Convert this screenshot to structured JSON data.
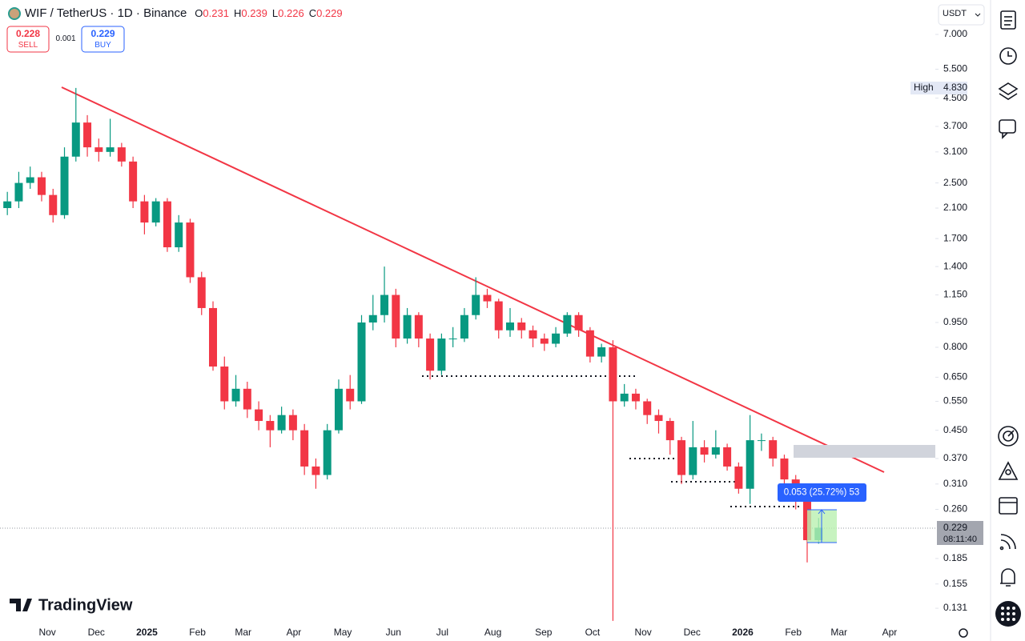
{
  "header": {
    "symbol": "WIF / TetherUS · 1D · Binance",
    "ohlc": [
      {
        "label": "O",
        "value": "0.231"
      },
      {
        "label": "H",
        "value": "0.239"
      },
      {
        "label": "L",
        "value": "0.226"
      },
      {
        "label": "C",
        "value": "0.229"
      }
    ],
    "sell": {
      "price": "0.228",
      "label": "SELL"
    },
    "spread": "0.001",
    "buy": {
      "price": "0.229",
      "label": "BUY"
    },
    "currency": "USDT",
    "brand": "TradingView"
  },
  "chart_data": {
    "type": "candlestick",
    "log": true,
    "grid": false,
    "up_color": "#089981",
    "down_color": "#f23645",
    "trendline_color": "#f23645",
    "xlim": [
      -29,
      544
    ],
    "ylim": [
      0.1186,
      8.887
    ],
    "xticks": [
      {
        "value": 0,
        "label": "Nov"
      },
      {
        "value": 30,
        "label": "Dec"
      },
      {
        "value": 61,
        "label": "2025"
      },
      {
        "value": 92,
        "label": "Feb"
      },
      {
        "value": 120,
        "label": "Mar"
      },
      {
        "value": 151,
        "label": "Apr"
      },
      {
        "value": 181,
        "label": "May"
      },
      {
        "value": 212,
        "label": "Jun"
      },
      {
        "value": 242,
        "label": "Jul"
      },
      {
        "value": 273,
        "label": "Aug"
      },
      {
        "value": 304,
        "label": "Sep"
      },
      {
        "value": 334,
        "label": "Oct"
      },
      {
        "value": 365,
        "label": "Nov"
      },
      {
        "value": 395,
        "label": "Dec"
      },
      {
        "value": 426,
        "label": "2026"
      },
      {
        "value": 457,
        "label": "Feb"
      },
      {
        "value": 485,
        "label": "Mar"
      },
      {
        "value": 516,
        "label": "Apr"
      }
    ],
    "yticks": [
      {
        "value": 7,
        "label": "7.000"
      },
      {
        "value": 5.5,
        "label": "5.500"
      },
      {
        "value": 4.5,
        "label": "4.500"
      },
      {
        "value": 3.7,
        "label": "3.700"
      },
      {
        "value": 3.1,
        "label": "3.100"
      },
      {
        "value": 2.5,
        "label": "2.500"
      },
      {
        "value": 2.1,
        "label": "2.100"
      },
      {
        "value": 1.7,
        "label": "1.700"
      },
      {
        "value": 1.4,
        "label": "1.400"
      },
      {
        "value": 1.15,
        "label": "1.150"
      },
      {
        "value": 0.95,
        "label": "0.950"
      },
      {
        "value": 0.8,
        "label": "0.800"
      },
      {
        "value": 0.65,
        "label": "0.650"
      },
      {
        "value": 0.55,
        "label": "0.550"
      },
      {
        "value": 0.45,
        "label": "0.450"
      },
      {
        "value": 0.37,
        "label": "0.370"
      },
      {
        "value": 0.31,
        "label": "0.310"
      },
      {
        "value": 0.26,
        "label": "0.260"
      },
      {
        "value": 0.185,
        "label": "0.185"
      },
      {
        "value": 0.155,
        "label": "0.155"
      },
      {
        "value": 0.131,
        "label": "0.131"
      }
    ],
    "x": [
      -28,
      -21,
      -14,
      -7,
      0,
      7,
      14,
      21,
      28,
      35,
      42,
      49,
      56,
      63,
      70,
      77,
      84,
      91,
      98,
      105,
      112,
      119,
      126,
      133,
      140,
      147,
      154,
      161,
      168,
      175,
      182,
      189,
      196,
      203,
      210,
      217,
      224,
      231,
      238,
      245,
      252,
      259,
      266,
      273,
      280,
      287,
      294,
      301,
      308,
      315,
      322,
      329,
      336,
      343,
      350,
      357,
      364,
      371,
      378,
      385,
      392,
      399,
      406,
      413,
      420,
      427,
      434,
      441,
      448,
      455,
      462,
      469
    ],
    "open": [
      2.1,
      2.2,
      2.5,
      2.6,
      2.3,
      2.0,
      3.0,
      3.8,
      3.2,
      3.1,
      3.2,
      2.9,
      2.2,
      1.9,
      2.2,
      1.6,
      1.9,
      1.3,
      1.05,
      0.7,
      0.55,
      0.6,
      0.52,
      0.48,
      0.45,
      0.5,
      0.45,
      0.35,
      0.33,
      0.45,
      0.6,
      0.55,
      0.95,
      1.0,
      1.15,
      0.85,
      1.0,
      0.85,
      0.68,
      0.85,
      0.85,
      1.0,
      1.15,
      1.1,
      0.9,
      0.95,
      0.9,
      0.85,
      0.82,
      0.88,
      1.0,
      0.9,
      0.75,
      0.8,
      0.55,
      0.58,
      0.55,
      0.5,
      0.48,
      0.42,
      0.33,
      0.4,
      0.38,
      0.4,
      0.35,
      0.3,
      0.42,
      0.42,
      0.37,
      0.32,
      0.28,
      0.21
    ],
    "high": [
      2.35,
      2.7,
      2.8,
      2.7,
      2.4,
      3.2,
      4.83,
      4.0,
      3.4,
      3.9,
      3.3,
      3.0,
      2.3,
      2.25,
      2.25,
      2.0,
      1.95,
      1.35,
      1.1,
      0.75,
      0.66,
      0.63,
      0.55,
      0.5,
      0.53,
      0.52,
      0.47,
      0.37,
      0.47,
      0.64,
      0.66,
      1.0,
      1.15,
      1.4,
      1.2,
      1.05,
      1.02,
      0.88,
      0.88,
      0.92,
      1.05,
      1.3,
      1.2,
      1.12,
      1.05,
      0.98,
      0.93,
      0.88,
      0.92,
      1.02,
      1.02,
      0.92,
      0.82,
      0.84,
      0.62,
      0.6,
      0.56,
      0.52,
      0.49,
      0.43,
      0.48,
      0.42,
      0.45,
      0.41,
      0.36,
      0.5,
      0.44,
      0.43,
      0.38,
      0.33,
      0.29,
      0.245
    ],
    "low": [
      2.0,
      2.1,
      2.4,
      2.2,
      1.9,
      1.95,
      2.9,
      3.0,
      2.9,
      3.0,
      2.8,
      2.1,
      1.75,
      1.85,
      1.55,
      1.55,
      1.25,
      1.0,
      0.68,
      0.52,
      0.53,
      0.49,
      0.45,
      0.4,
      0.44,
      0.42,
      0.33,
      0.3,
      0.32,
      0.44,
      0.52,
      0.54,
      0.9,
      0.95,
      0.8,
      0.82,
      0.8,
      0.64,
      0.66,
      0.8,
      0.83,
      0.97,
      1.05,
      0.85,
      0.86,
      0.85,
      0.8,
      0.78,
      0.8,
      0.86,
      0.86,
      0.72,
      0.72,
      0.12,
      0.53,
      0.52,
      0.47,
      0.44,
      0.38,
      0.31,
      0.32,
      0.36,
      0.37,
      0.34,
      0.29,
      0.27,
      0.39,
      0.35,
      0.31,
      0.26,
      0.18,
      0.205
    ],
    "close": [
      2.2,
      2.5,
      2.6,
      2.3,
      2.0,
      3.0,
      3.8,
      3.2,
      3.1,
      3.2,
      2.9,
      2.2,
      1.9,
      2.2,
      1.6,
      1.9,
      1.3,
      1.05,
      0.7,
      0.55,
      0.6,
      0.52,
      0.48,
      0.45,
      0.5,
      0.45,
      0.35,
      0.33,
      0.45,
      0.6,
      0.55,
      0.95,
      1.0,
      1.15,
      0.85,
      1.0,
      0.85,
      0.68,
      0.85,
      0.85,
      1.0,
      1.15,
      1.1,
      0.9,
      0.95,
      0.9,
      0.85,
      0.82,
      0.88,
      1.0,
      0.9,
      0.75,
      0.8,
      0.55,
      0.58,
      0.55,
      0.5,
      0.48,
      0.42,
      0.33,
      0.4,
      0.38,
      0.4,
      0.35,
      0.3,
      0.42,
      0.42,
      0.37,
      0.32,
      0.28,
      0.21,
      0.229
    ],
    "high_marker": {
      "label": "High",
      "value": "4.830"
    },
    "last_price": {
      "value": "0.229",
      "countdown": "08:11:40"
    },
    "measure_label": "0.053 (25.72%) 53"
  }
}
